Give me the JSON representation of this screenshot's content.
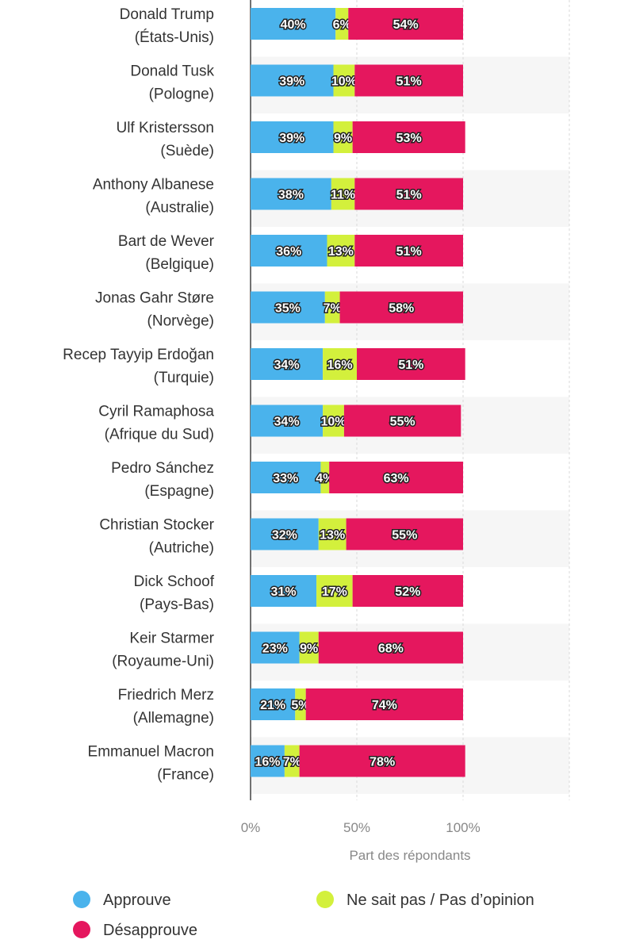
{
  "chart_data": {
    "type": "bar",
    "orientation": "horizontal",
    "stacked": true,
    "categories": [
      [
        "Donald Trump",
        "(États-Unis)"
      ],
      [
        "Donald Tusk",
        "(Pologne)"
      ],
      [
        "Ulf Kristersson",
        "(Suède)"
      ],
      [
        "Anthony Albanese",
        "(Australie)"
      ],
      [
        "Bart de Wever",
        "(Belgique)"
      ],
      [
        "Jonas Gahr Støre",
        "(Norvège)"
      ],
      [
        "Recep Tayyip Erdoğan",
        "(Turquie)"
      ],
      [
        "Cyril Ramaphosa",
        "(Afrique du Sud)"
      ],
      [
        "Pedro Sánchez",
        "(Espagne)"
      ],
      [
        "Christian Stocker",
        "(Autriche)"
      ],
      [
        "Dick Schoof",
        "(Pays-Bas)"
      ],
      [
        "Keir Starmer",
        "(Royaume-Uni)"
      ],
      [
        "Friedrich Merz",
        "(Allemagne)"
      ],
      [
        "Emmanuel Macron",
        "(France)"
      ]
    ],
    "series": [
      {
        "name": "Approuve",
        "color": "#4ab3ec",
        "values": [
          40,
          39,
          39,
          38,
          36,
          35,
          34,
          34,
          33,
          32,
          31,
          23,
          21,
          16
        ]
      },
      {
        "name": "Ne sait pas / Pas d’opinion",
        "color": "#d3f03c",
        "values": [
          6,
          10,
          9,
          11,
          13,
          7,
          16,
          10,
          4,
          13,
          17,
          9,
          5,
          7
        ]
      },
      {
        "name": "Désapprouve",
        "color": "#e5175e",
        "values": [
          54,
          51,
          53,
          51,
          51,
          58,
          51,
          55,
          63,
          55,
          52,
          68,
          74,
          78
        ]
      }
    ],
    "xticks": [
      "0%",
      "50%",
      "100%"
    ],
    "xlabel": "Part des répondants",
    "xlim": [
      0,
      150
    ],
    "grid": true,
    "legend_position": "bottom"
  }
}
